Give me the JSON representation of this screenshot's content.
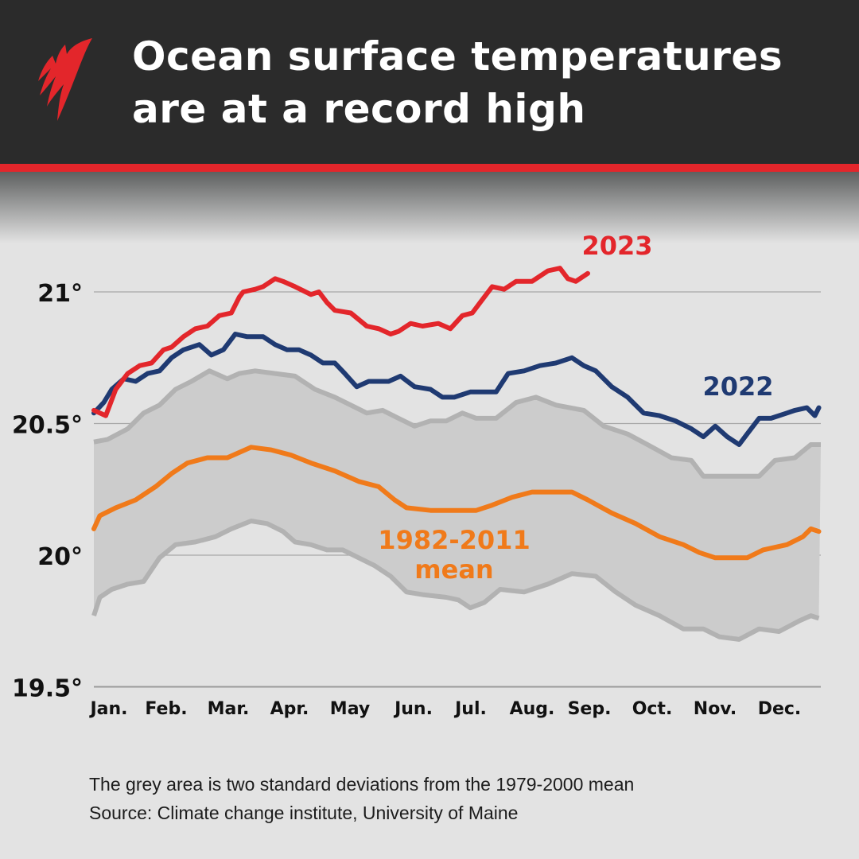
{
  "header": {
    "title_line1": "Ocean surface temperatures",
    "title_line2": "are at a record high",
    "logo": "SBS-logo"
  },
  "colors": {
    "header_bg": "#2b2b2b",
    "accent": "#e3262b",
    "series_2023": "#e3262b",
    "series_2022": "#1f3a72",
    "mean": "#f07a1a",
    "band_fill": "#cccccc",
    "band_line": "#b2b2b2"
  },
  "chart_data": {
    "type": "line",
    "title": "Ocean surface temperatures are at a record high",
    "xlabel": "",
    "ylabel": "",
    "x_unit": "day of year",
    "xlim": [
      0,
      365
    ],
    "ylim": [
      19.5,
      21.2
    ],
    "grid": "horizontal",
    "y_ticks": [
      {
        "value": 21,
        "label": "21°"
      },
      {
        "value": 20.5,
        "label": "20.5°"
      },
      {
        "value": 20,
        "label": "20°"
      },
      {
        "value": 19.5,
        "label": "19.5°"
      }
    ],
    "x_ticks": [
      "Jan.",
      "Feb.",
      "Mar.",
      "Apr.",
      "May",
      "Jun.",
      "Jul.",
      "Aug.",
      "Sep.",
      "Oct.",
      "Nov.",
      "Dec."
    ],
    "band": {
      "upper": {
        "x": [
          0,
          7,
          17,
          25,
          33,
          41,
          49,
          58,
          67,
          73,
          81,
          91,
          101,
          111,
          121,
          129,
          137,
          145,
          153,
          161,
          169,
          177,
          185,
          192,
          202,
          212,
          222,
          232,
          246,
          256,
          268,
          278,
          290,
          300,
          306,
          312,
          324,
          334,
          342,
          352,
          360,
          365
        ],
        "y": [
          20.43,
          20.44,
          20.48,
          20.54,
          20.57,
          20.63,
          20.66,
          20.7,
          20.67,
          20.69,
          20.7,
          20.69,
          20.68,
          20.63,
          20.6,
          20.57,
          20.54,
          20.55,
          20.52,
          20.49,
          20.51,
          20.51,
          20.54,
          20.52,
          20.52,
          20.58,
          20.6,
          20.57,
          20.55,
          20.49,
          20.46,
          20.42,
          20.37,
          20.36,
          20.3,
          20.3,
          20.3,
          20.3,
          20.36,
          20.37,
          20.42,
          20.42
        ]
      },
      "lower": {
        "x": [
          0,
          3,
          9,
          17,
          25,
          33,
          41,
          51,
          61,
          69,
          79,
          87,
          95,
          101,
          109,
          117,
          125,
          133,
          141,
          149,
          157,
          165,
          177,
          183,
          189,
          196,
          204,
          216,
          228,
          240,
          252,
          262,
          272,
          284,
          296,
          306,
          314,
          324,
          334,
          344,
          354,
          360,
          364
        ],
        "y": [
          19.77,
          19.84,
          19.87,
          19.89,
          19.9,
          19.99,
          20.04,
          20.05,
          20.07,
          20.1,
          20.13,
          20.12,
          20.09,
          20.05,
          20.04,
          20.02,
          20.02,
          19.99,
          19.96,
          19.92,
          19.86,
          19.85,
          19.84,
          19.83,
          19.8,
          19.82,
          19.87,
          19.86,
          19.89,
          19.93,
          19.92,
          19.86,
          19.81,
          19.77,
          19.72,
          19.72,
          19.69,
          19.68,
          19.72,
          19.71,
          19.75,
          19.77,
          19.76
        ]
      }
    },
    "series": [
      {
        "name": "2023",
        "color": "#e3262b",
        "x": [
          0,
          6,
          11,
          17,
          23,
          29,
          35,
          39,
          45,
          51,
          57,
          63,
          69,
          73,
          75,
          81,
          85,
          91,
          95,
          101,
          109,
          113,
          117,
          121,
          129,
          137,
          143,
          149,
          153,
          159,
          165,
          173,
          179,
          185,
          190,
          194,
          200,
          206,
          212,
          220,
          228,
          234,
          238,
          242,
          248
        ],
        "y": [
          20.55,
          20.53,
          20.63,
          20.69,
          20.72,
          20.73,
          20.78,
          20.79,
          20.83,
          20.86,
          20.87,
          20.91,
          20.92,
          20.98,
          21.0,
          21.01,
          21.02,
          21.05,
          21.04,
          21.02,
          20.99,
          21.0,
          20.96,
          20.93,
          20.92,
          20.87,
          20.86,
          20.84,
          20.85,
          20.88,
          20.87,
          20.88,
          20.86,
          20.91,
          20.92,
          20.96,
          21.02,
          21.01,
          21.04,
          21.04,
          21.08,
          21.09,
          21.05,
          21.04,
          21.07
        ]
      },
      {
        "name": "2022",
        "color": "#1f3a72",
        "x": [
          0,
          5,
          9,
          15,
          21,
          27,
          33,
          39,
          45,
          53,
          59,
          65,
          71,
          77,
          85,
          91,
          97,
          103,
          109,
          115,
          121,
          126,
          132,
          138,
          148,
          154,
          161,
          169,
          175,
          181,
          189,
          196,
          202,
          208,
          216,
          224,
          232,
          240,
          246,
          252,
          260,
          268,
          276,
          284,
          292,
          300,
          306,
          312,
          318,
          324,
          328,
          334,
          340,
          348,
          352,
          358,
          362,
          364
        ],
        "y": [
          20.54,
          20.58,
          20.63,
          20.67,
          20.66,
          20.69,
          20.7,
          20.75,
          20.78,
          20.8,
          20.76,
          20.78,
          20.84,
          20.83,
          20.83,
          20.8,
          20.78,
          20.78,
          20.76,
          20.73,
          20.73,
          20.69,
          20.64,
          20.66,
          20.66,
          20.68,
          20.64,
          20.63,
          20.6,
          20.6,
          20.62,
          20.62,
          20.62,
          20.69,
          20.7,
          20.72,
          20.73,
          20.75,
          20.72,
          20.7,
          20.64,
          20.6,
          20.54,
          20.53,
          20.51,
          20.48,
          20.45,
          20.49,
          20.45,
          20.42,
          20.46,
          20.52,
          20.52,
          20.54,
          20.55,
          20.56,
          20.53,
          20.56
        ]
      },
      {
        "name": "1982-2011 mean",
        "color": "#f07a1a",
        "x": [
          0,
          3,
          11,
          21,
          31,
          39,
          47,
          57,
          67,
          79,
          89,
          99,
          109,
          121,
          133,
          143,
          151,
          157,
          169,
          181,
          192,
          200,
          210,
          220,
          232,
          240,
          248,
          260,
          272,
          284,
          296,
          304,
          312,
          320,
          328,
          336,
          348,
          356,
          360,
          364
        ],
        "y": [
          20.1,
          20.15,
          20.18,
          20.21,
          20.26,
          20.31,
          20.35,
          20.37,
          20.37,
          20.41,
          20.4,
          20.38,
          20.35,
          20.32,
          20.28,
          20.26,
          20.21,
          20.18,
          20.17,
          20.17,
          20.17,
          20.19,
          20.22,
          20.24,
          20.24,
          20.24,
          20.21,
          20.16,
          20.12,
          20.07,
          20.04,
          20.01,
          19.99,
          19.99,
          19.99,
          20.02,
          20.04,
          20.07,
          20.1,
          20.09
        ]
      }
    ],
    "annotations": [
      {
        "text": "2023",
        "series": "2023"
      },
      {
        "text": "2022",
        "series": "2022"
      },
      {
        "text_line1": "1982-2011",
        "text_line2": "mean",
        "series": "1982-2011 mean"
      }
    ]
  },
  "footer": {
    "note": "The grey area is two standard deviations from the 1979-2000 mean",
    "source": "Source: Climate change institute, University of Maine"
  }
}
